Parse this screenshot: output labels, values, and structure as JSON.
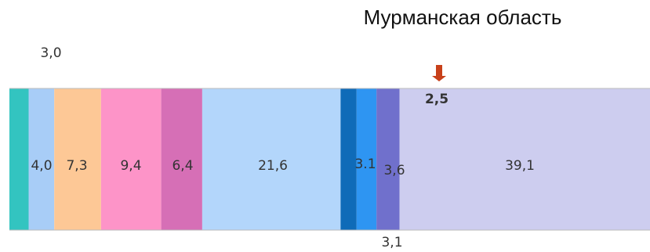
{
  "chart_data": {
    "type": "stacked-bar",
    "title": "Мурманская область",
    "values": [
      3.0,
      4.0,
      7.3,
      9.4,
      6.4,
      21.6,
      2.5,
      3.1,
      3.6,
      39.1
    ],
    "value_labels": [
      "3,0",
      "4,0",
      "7,3",
      "9,4",
      "6,4",
      "21,6",
      "2,5",
      "3.1",
      "3,6",
      "39,1"
    ],
    "colors": [
      "#33c4c0",
      "#a8cdf7",
      "#fdc896",
      "#fd94c8",
      "#d66fb6",
      "#b3d6fb",
      "#0f6bb8",
      "#2e95f2",
      "#7070cc",
      "#cdcdef"
    ],
    "xlim": [
      0,
      100
    ],
    "annotations": [
      "3,1"
    ]
  }
}
